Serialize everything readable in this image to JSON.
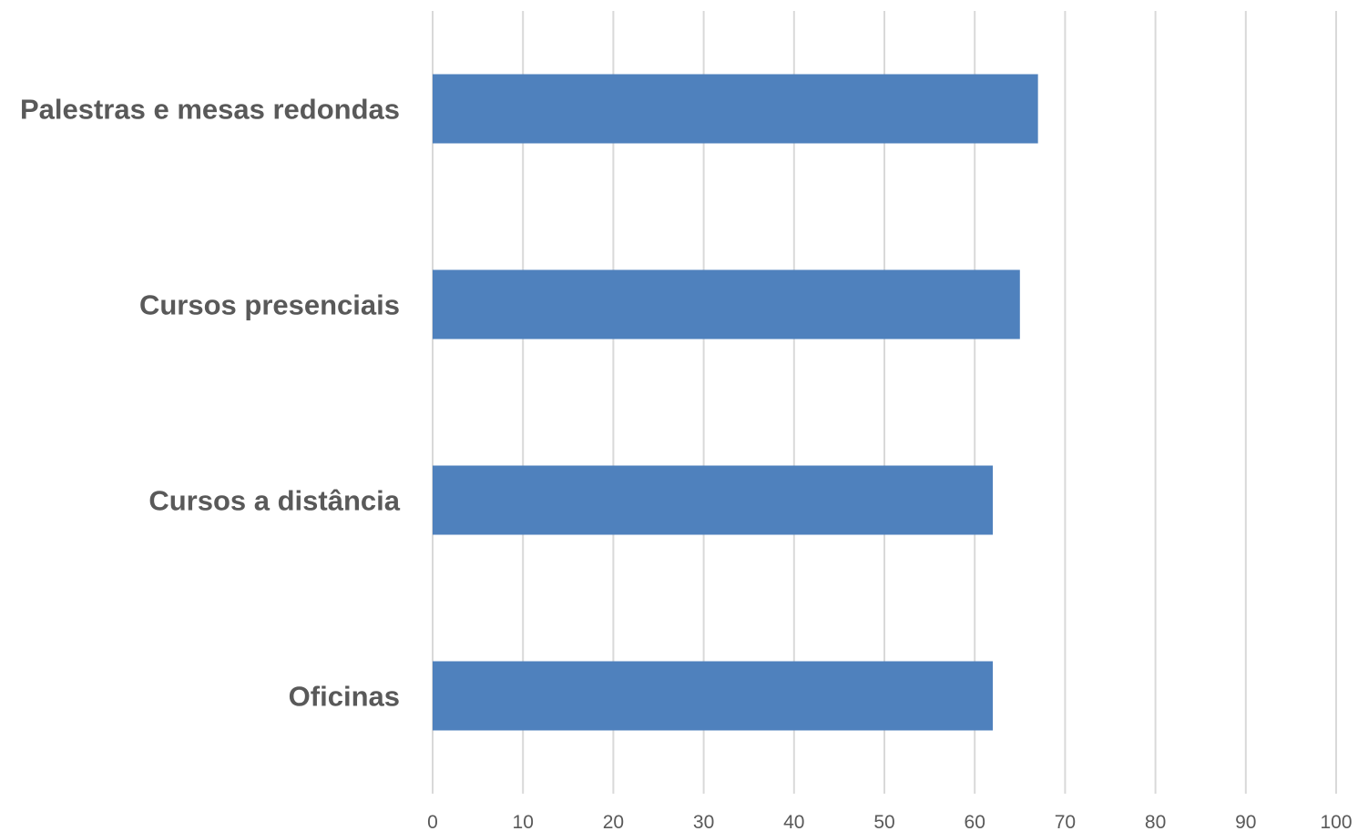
{
  "chart_data": {
    "type": "bar",
    "orientation": "horizontal",
    "title": "",
    "xlabel": "",
    "ylabel": "",
    "categories": [
      "Palestras e mesas redondas",
      "Cursos presenciais",
      "Cursos a distância",
      "Oficinas"
    ],
    "values": [
      67,
      65,
      62,
      62
    ],
    "xlim": [
      0,
      100
    ],
    "xticks": [
      "0",
      "10",
      "20",
      "30",
      "40",
      "50",
      "60",
      "70",
      "80",
      "90",
      "100"
    ],
    "grid": true,
    "legend": "none",
    "bar_color": "#4f81bd",
    "grid_color": "#d9d9d9",
    "label_color": "#595959"
  }
}
